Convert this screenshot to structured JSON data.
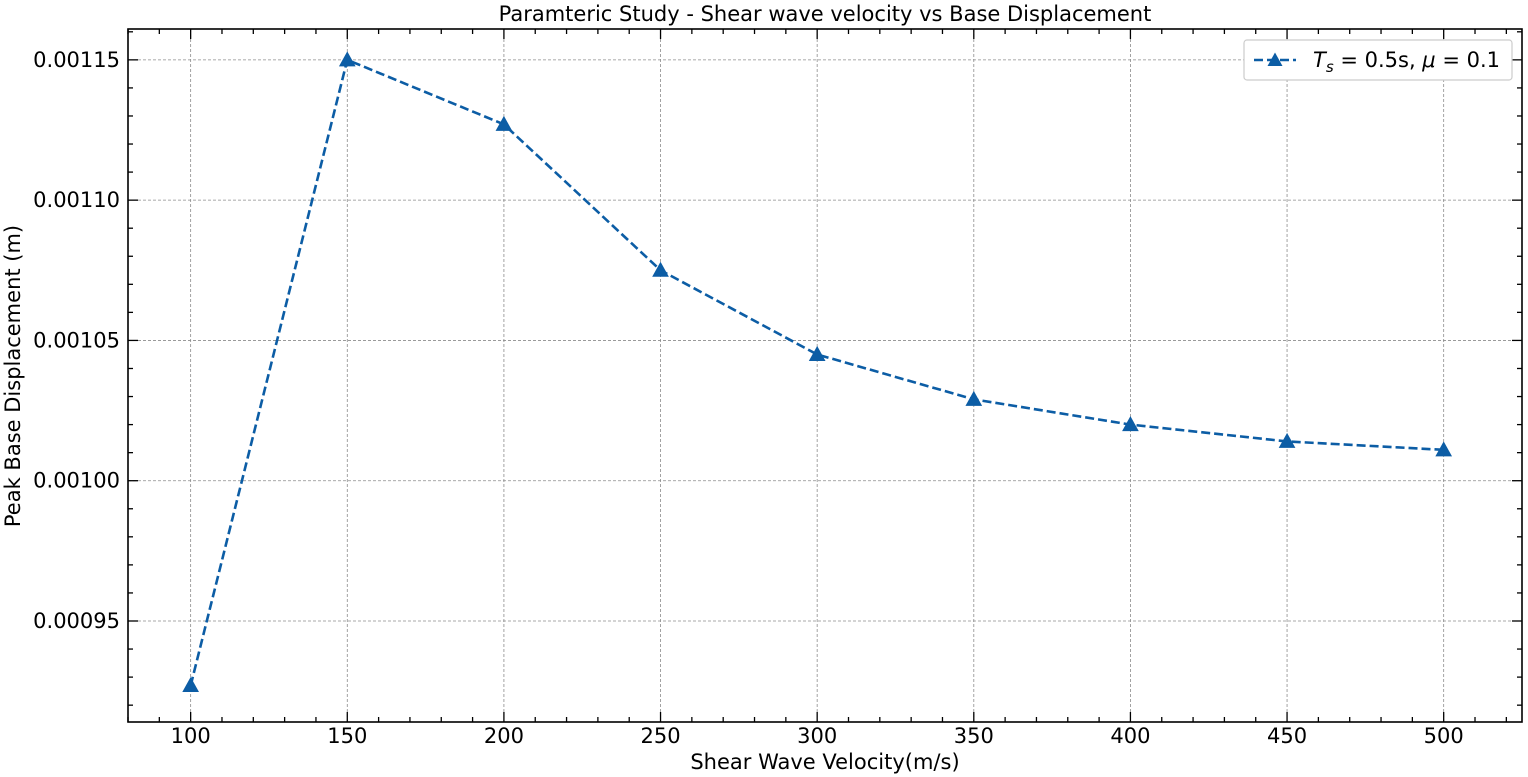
{
  "chart_data": {
    "type": "line",
    "title": "Paramteric Study - Shear wave velocity vs Base Displacement",
    "xlabel": "Shear Wave Velocity(m/s)",
    "ylabel": "Peak Base Displacement (m)",
    "xlim": [
      80,
      525
    ],
    "ylim": [
      0.000914,
      0.001161
    ],
    "xticks": [
      100,
      150,
      200,
      250,
      300,
      350,
      400,
      450,
      500
    ],
    "xtick_labels": [
      "100",
      "150",
      "200",
      "250",
      "300",
      "350",
      "400",
      "450",
      "500"
    ],
    "xminor_step": 10,
    "yticks": [
      0.00095,
      0.001,
      0.00105,
      0.0011,
      0.00115
    ],
    "ytick_labels": [
      "0.00095",
      "0.00100",
      "0.00105",
      "0.00110",
      "0.00115"
    ],
    "yminor_step": 1e-05,
    "grid": true,
    "legend_position": "top-right",
    "series": [
      {
        "name": "T_s = 0.5s, μ = 0.1",
        "color": "#0c5da5",
        "marker": "triangle",
        "line_style": "dashed",
        "x": [
          100,
          150,
          200,
          250,
          300,
          350,
          400,
          450,
          500
        ],
        "y": [
          0.000927,
          0.00115,
          0.001127,
          0.001075,
          0.001045,
          0.001029,
          0.00102,
          0.001014,
          0.001011
        ]
      }
    ]
  },
  "legend": {
    "symbol_T": "T",
    "symbol_s": "s",
    "eq1": " = 0.5s, ",
    "symbol_mu": "μ",
    "eq2": " = 0.1"
  }
}
